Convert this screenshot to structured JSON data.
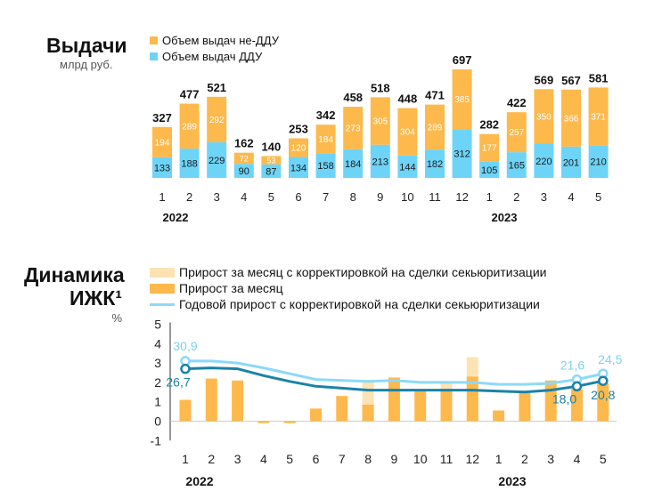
{
  "colors": {
    "non_ddu": "#fdb94c",
    "ddu": "#6dd4f7",
    "monthly": "#fdb94c",
    "monthly_adj": "#fde3b3",
    "annual_adj": "#8dd9f8",
    "annual": "#1a82a7",
    "annual_label_light": "#7fd0f2",
    "annual_label_dark": "#1a82a7"
  },
  "top": {
    "title": "Выдачи",
    "subtitle": "млрд руб.",
    "legend": [
      "Объем выдач не-ДДУ",
      "Объем выдач ДДУ"
    ]
  },
  "bottom": {
    "title_line1": "Динамика",
    "title_line2": "ИЖК¹",
    "unit": "%",
    "legend": [
      "Прирост за месяц с корректировкой на сделки секьюритизации",
      "Прирост за месяц",
      "Годовой прирост с корректировкой на сделки секьюритизации"
    ]
  },
  "chart_data": [
    {
      "type": "bar",
      "stacked": true,
      "title": "Выдачи",
      "ylabel": "млрд руб.",
      "categories": [
        "1",
        "2",
        "3",
        "4",
        "5",
        "6",
        "7",
        "8",
        "9",
        "10",
        "11",
        "12",
        "1",
        "2",
        "3",
        "4",
        "5"
      ],
      "year_labels": [
        "2022",
        "2023"
      ],
      "series": [
        {
          "name": "Объем выдач ДДУ",
          "values": [
            133,
            188,
            229,
            90,
            87,
            134,
            158,
            184,
            213,
            144,
            182,
            312,
            105,
            165,
            220,
            201,
            210
          ]
        },
        {
          "name": "Объем выдач не-ДДУ",
          "values": [
            194,
            289,
            292,
            72,
            53,
            120,
            184,
            273,
            305,
            304,
            289,
            385,
            177,
            257,
            350,
            366,
            371
          ]
        }
      ],
      "totals": [
        327,
        477,
        521,
        162,
        140,
        253,
        342,
        458,
        518,
        448,
        471,
        697,
        282,
        422,
        569,
        567,
        581
      ]
    },
    {
      "type": "bar+line",
      "title": "Динамика ИЖК¹",
      "ylabel": "%",
      "ylim": [
        -1,
        5
      ],
      "yticks": [
        "5",
        "4",
        "3",
        "2",
        "1",
        "0",
        "-1"
      ],
      "categories": [
        "1",
        "2",
        "3",
        "4",
        "5",
        "6",
        "7",
        "8",
        "9",
        "10",
        "11",
        "12",
        "1",
        "2",
        "3",
        "4",
        "5"
      ],
      "year_labels": [
        "2022",
        "2023"
      ],
      "monthly": [
        1.1,
        2.2,
        2.1,
        -0.1,
        -0.1,
        0.65,
        1.3,
        0.85,
        2.25,
        1.65,
        1.55,
        2.3,
        0.55,
        1.45,
        2.1,
        1.65,
        1.95
      ],
      "monthly_adjusted": [
        1.1,
        2.2,
        2.1,
        -0.1,
        -0.1,
        0.65,
        1.3,
        2.0,
        2.25,
        1.65,
        2.0,
        3.3,
        0.55,
        1.45,
        2.1,
        1.65,
        1.95
      ],
      "annual_adjusted_scaled": [
        3.1,
        3.1,
        3.0,
        2.75,
        2.45,
        2.15,
        2.1,
        2.05,
        2.1,
        2.0,
        2.0,
        2.0,
        1.9,
        1.9,
        1.95,
        2.15,
        2.45
      ],
      "annual_scaled": [
        2.7,
        2.75,
        2.7,
        2.35,
        2.05,
        1.8,
        1.7,
        1.6,
        1.6,
        1.6,
        1.6,
        1.6,
        1.55,
        1.5,
        1.6,
        1.8,
        2.08
      ],
      "annotations": [
        {
          "text": "30,9",
          "series": "annual_adjusted",
          "index": 0
        },
        {
          "text": "26,7",
          "series": "annual",
          "index": 0
        },
        {
          "text": "21,6",
          "series": "annual_adjusted",
          "index": 15
        },
        {
          "text": "24,5",
          "series": "annual_adjusted",
          "index": 16
        },
        {
          "text": "18,0",
          "series": "annual",
          "index": 15
        },
        {
          "text": "20,8",
          "series": "annual",
          "index": 16
        }
      ]
    }
  ]
}
